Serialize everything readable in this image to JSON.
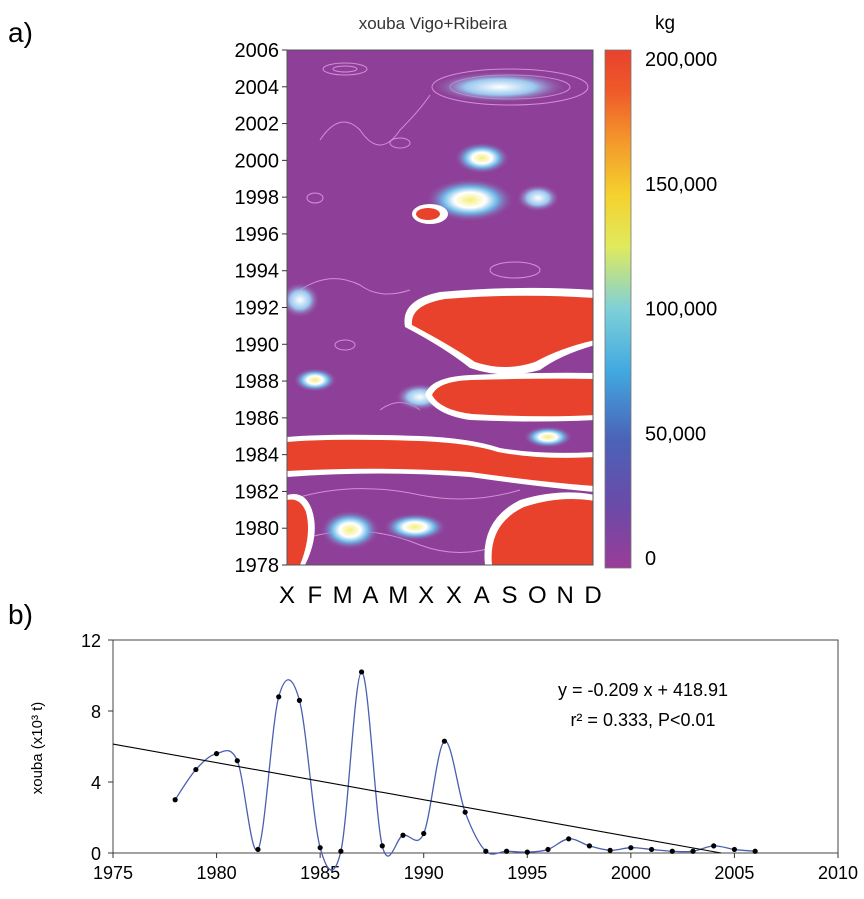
{
  "panel_a": {
    "label": "a)",
    "title": "xouba Vigo+Ribeira",
    "colorbar_unit": "kg",
    "colorbar_ticks": [
      "200,000",
      "150,000",
      "100,000",
      "50,000",
      "0"
    ],
    "y_ticks": [
      "2006",
      "2004",
      "2002",
      "2000",
      "1998",
      "1996",
      "1994",
      "1992",
      "1990",
      "1988",
      "1986",
      "1984",
      "1982",
      "1980",
      "1978"
    ],
    "x_ticks": [
      "X",
      "F",
      "M",
      "A",
      "M",
      "X",
      "X",
      "A",
      "S",
      "O",
      "N",
      "D"
    ],
    "colors": {
      "background": "#8e3f97",
      "high": "#e8412c",
      "contour": "#d58fd9"
    }
  },
  "panel_b": {
    "label": "b)",
    "ylabel": "xouba (x10³ t)",
    "equation": "y = -0.209 x + 418.91",
    "r2_text": "r² = 0.333, P<0.01",
    "x_ticks": [
      "1975",
      "1980",
      "1985",
      "1990",
      "1995",
      "2000",
      "2005",
      "2010"
    ],
    "y_ticks": [
      "12",
      "8",
      "4",
      "0"
    ]
  },
  "chart_data": [
    {
      "type": "heatmap",
      "title": "xouba Vigo+Ribeira",
      "x_categories": [
        "X",
        "F",
        "M",
        "A",
        "M",
        "X",
        "X",
        "A",
        "S",
        "O",
        "N",
        "D"
      ],
      "ylim": [
        1978,
        2006
      ],
      "colorbar": {
        "label": "kg",
        "range": [
          0,
          200000
        ],
        "ticks": [
          0,
          50000,
          100000,
          150000,
          200000
        ]
      },
      "high_regions": [
        {
          "months": "Jan-Dec",
          "years": [
            1983.3,
            1984.9
          ],
          "level": "≥200,000"
        },
        {
          "months": "Jun-Dec",
          "years": [
            1986.3,
            1987.9
          ],
          "level": "≥200,000"
        },
        {
          "months": "May-Dec",
          "years": [
            1989.8,
            1992.2
          ],
          "level": "≥200,000"
        },
        {
          "months": "Jan",
          "years": [
            1978,
            1981
          ],
          "level": "≥200,000"
        },
        {
          "months": "Jul-Dec",
          "years": [
            1978,
            1982
          ],
          "level": "≥200,000"
        },
        {
          "months": "May",
          "years": [
            1996.7,
            1997.2
          ],
          "level": "≥200,000"
        }
      ]
    },
    {
      "type": "line",
      "xlabel": "",
      "ylabel": "xouba (x10³ t)",
      "xlim": [
        1975,
        2010
      ],
      "ylim": [
        0,
        12
      ],
      "grid": false,
      "series": [
        {
          "x": [
            1978,
            1979,
            1980,
            1981,
            1982,
            1983,
            1984,
            1985,
            1986,
            1987,
            1988,
            1989,
            1990,
            1991,
            1992,
            1993,
            1994,
            1995,
            1996,
            1997,
            1998,
            1999,
            2000,
            2001,
            2002,
            2003,
            2004,
            2005,
            2006
          ],
          "values": [
            3.0,
            4.7,
            5.6,
            5.2,
            0.2,
            8.8,
            8.6,
            0.3,
            0.1,
            10.2,
            0.4,
            1.0,
            1.1,
            6.3,
            2.3,
            0.1,
            0.1,
            0.05,
            0.2,
            0.8,
            0.4,
            0.15,
            0.3,
            0.2,
            0.1,
            0.1,
            0.4,
            0.2,
            0.1
          ]
        }
      ],
      "trend_line": {
        "slope": -0.209,
        "intercept": 418.91
      },
      "annotations": [
        "y = -0.209 x + 418.91",
        "r² = 0.333, P<0.01"
      ]
    }
  ]
}
